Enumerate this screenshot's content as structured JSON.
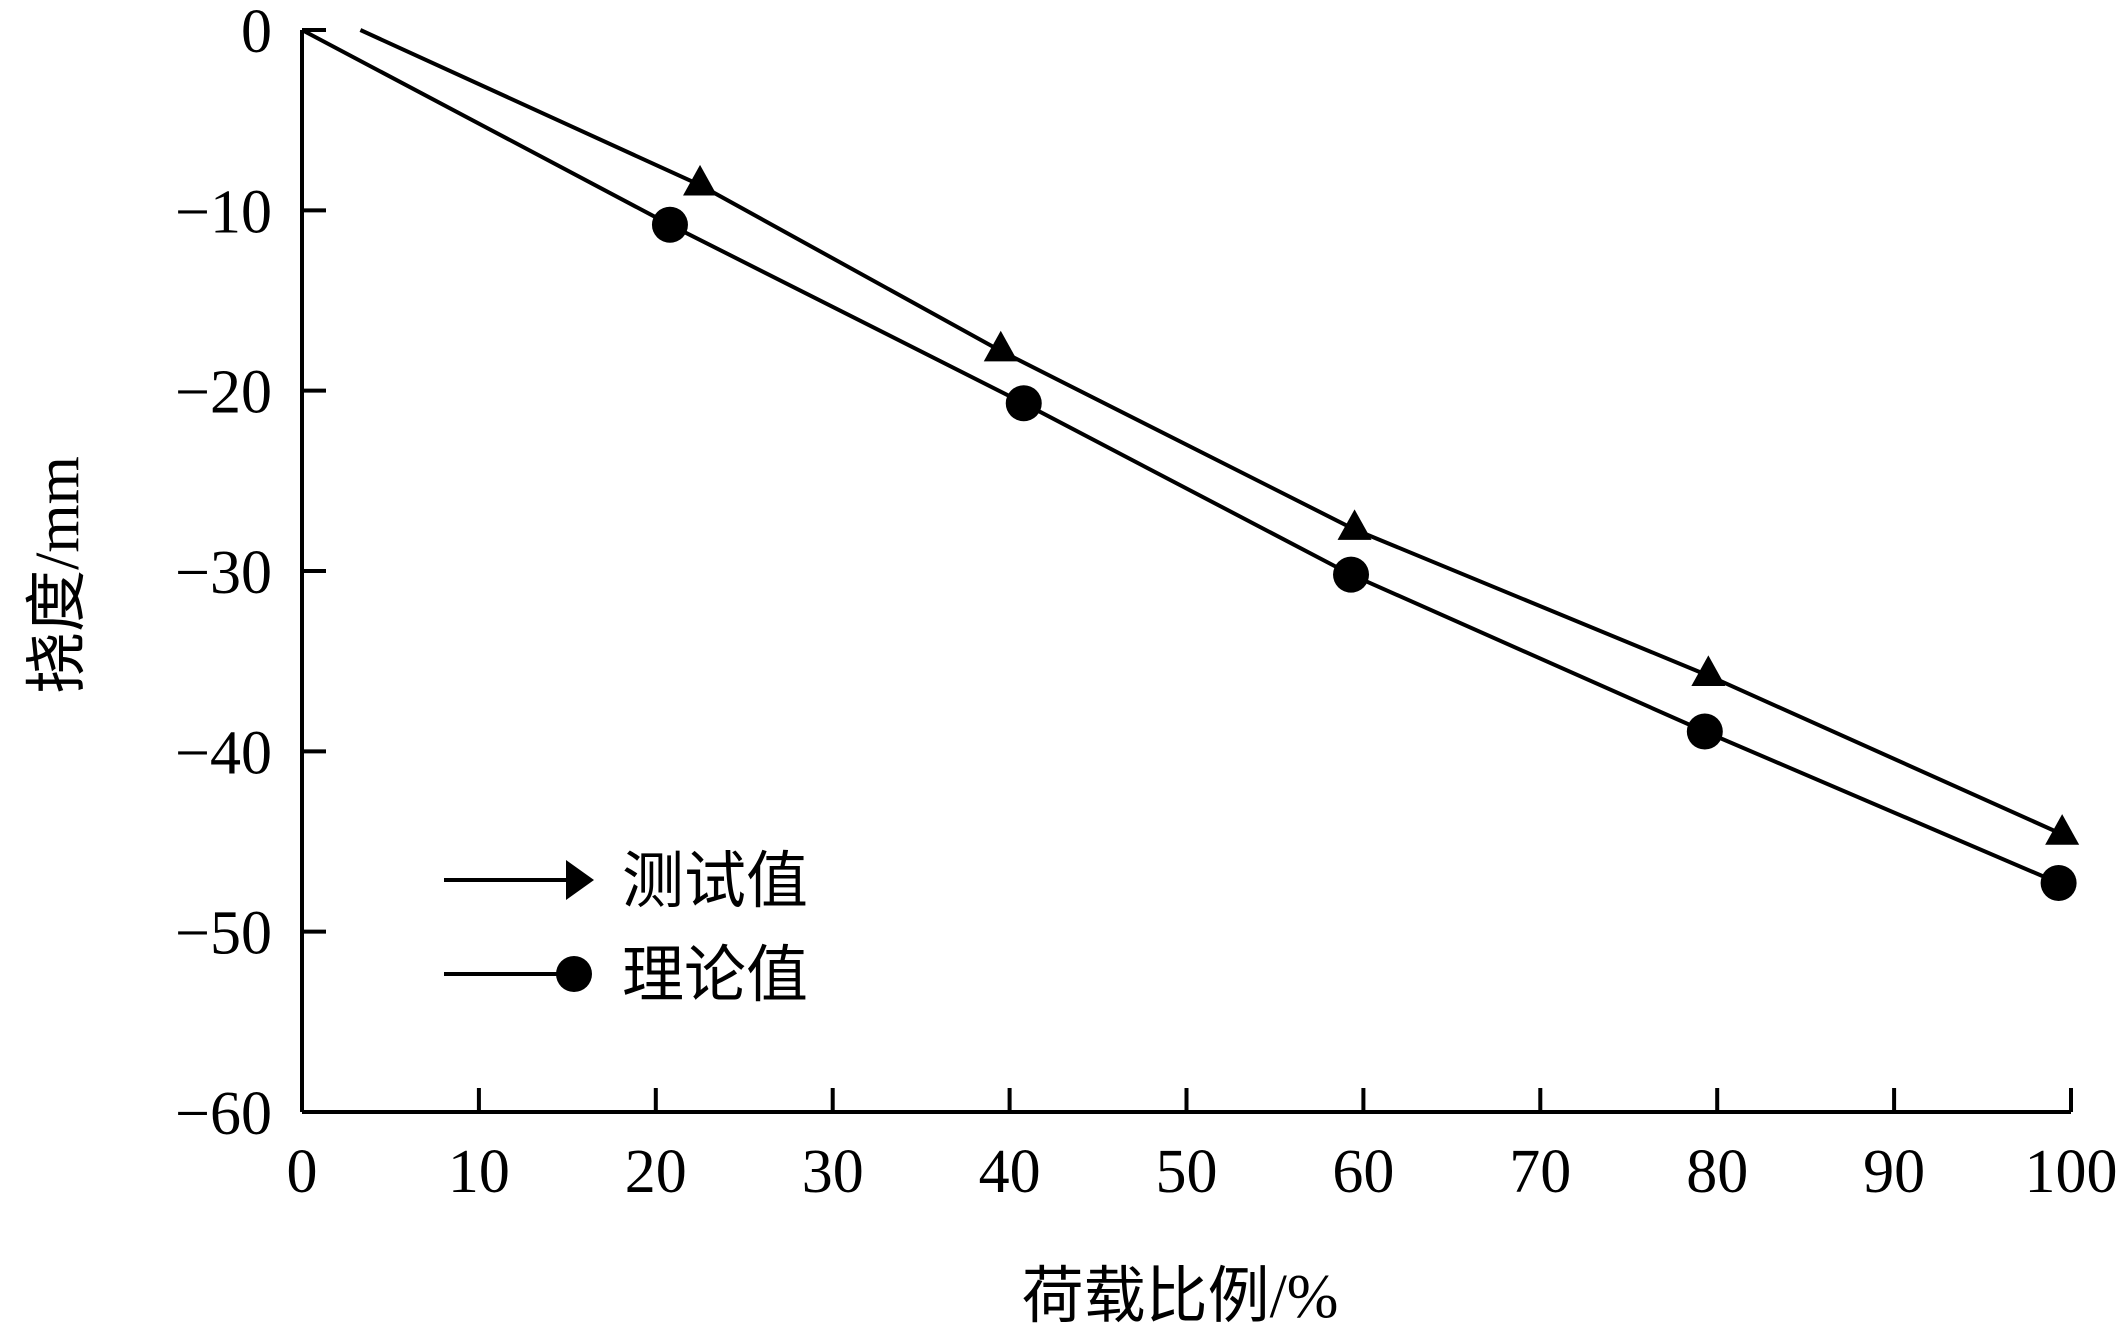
{
  "chart_data": {
    "type": "line",
    "title": "",
    "xlabel": "荷载比例/%",
    "ylabel": "挠度/mm",
    "xlim": [
      0,
      100
    ],
    "ylim": [
      -60,
      0
    ],
    "xticks": [
      0,
      10,
      20,
      30,
      40,
      50,
      60,
      70,
      80,
      90,
      100
    ],
    "yticks": [
      0,
      -10,
      -20,
      -30,
      -40,
      -50,
      -60
    ],
    "xtick_labels": [
      "0",
      "10",
      "20",
      "30",
      "40",
      "50",
      "60",
      "70",
      "80",
      "90",
      "100"
    ],
    "ytick_labels": [
      "0",
      "−10",
      "−20",
      "−30",
      "−40",
      "−50",
      "−60"
    ],
    "grid": false,
    "legend_position": "bottom-left",
    "series": [
      {
        "name": "测试值",
        "marker": "triangle",
        "color": "#000000",
        "x": [
          3.3,
          22.5,
          39.5,
          59.5,
          79.5,
          99.5
        ],
        "y": [
          0,
          -8.6,
          -17.8,
          -27.7,
          -35.8,
          -44.6
        ]
      },
      {
        "name": "理论值",
        "marker": "circle",
        "color": "#000000",
        "x": [
          0,
          20.8,
          40.8,
          59.3,
          79.3,
          99.3
        ],
        "y": [
          0,
          -10.8,
          -20.7,
          -30.2,
          -38.9,
          -47.3
        ]
      }
    ]
  }
}
